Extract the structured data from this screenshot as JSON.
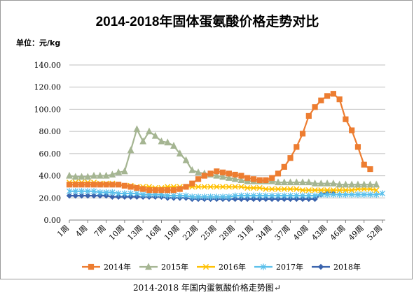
{
  "chart_data": {
    "type": "line",
    "title": "2014-2018年固体蛋氨酸价格走势对比",
    "unit_label": "单位：元/kg",
    "ylim": [
      0,
      140
    ],
    "yticks": [
      "0.00",
      "20.00",
      "40.00",
      "60.00",
      "80.00",
      "100.00",
      "120.00",
      "140.00"
    ],
    "x_count": 52,
    "xticks": [
      "1周",
      "4周",
      "7周",
      "10周",
      "13周",
      "16周",
      "19周",
      "22周",
      "25周",
      "28周",
      "31周",
      "34周",
      "37周",
      "40周",
      "43周",
      "46周",
      "49周",
      "52周"
    ],
    "grid": "horizontal",
    "legend_position": "bottom",
    "series": [
      {
        "name": "2014年",
        "color": "#ed7d31",
        "marker": "square",
        "values": [
          32,
          32,
          32,
          32,
          32,
          32,
          32,
          32,
          32,
          31,
          30,
          29,
          28,
          27,
          27,
          27,
          27,
          27,
          28,
          30,
          33,
          37,
          40,
          42,
          44,
          43,
          42,
          41,
          40,
          38,
          37,
          36,
          36,
          38,
          42,
          48,
          56,
          66,
          78,
          94,
          102,
          108,
          112,
          114,
          109,
          91,
          81,
          66,
          50,
          46
        ]
      },
      {
        "name": "2015年",
        "color": "#a5b592",
        "marker": "triangle",
        "values": [
          40,
          39,
          39,
          39,
          40,
          40,
          40,
          41,
          43,
          44,
          63,
          82,
          71,
          80,
          76,
          71,
          70,
          67,
          60,
          54,
          45,
          43,
          42,
          41,
          40,
          39,
          38,
          37,
          36,
          35,
          35,
          35,
          35,
          35,
          34,
          34,
          34,
          34,
          34,
          34,
          33,
          33,
          33,
          33,
          32,
          32,
          32,
          32,
          32,
          32,
          32
        ]
      },
      {
        "name": "2016年",
        "color": "#ffc000",
        "marker": "x",
        "values": [
          34,
          34,
          34,
          34,
          34,
          33,
          33,
          33,
          32,
          31,
          31,
          30,
          30,
          30,
          29,
          29,
          30,
          30,
          30,
          30,
          30,
          30,
          30,
          30,
          30,
          30,
          30,
          30,
          30,
          29,
          29,
          29,
          28,
          28,
          28,
          28,
          28,
          28,
          27,
          27,
          27,
          27,
          27,
          27,
          27,
          27,
          27,
          28,
          28,
          28,
          27
        ]
      },
      {
        "name": "2017年",
        "color": "#5bc0eb",
        "marker": "star",
        "values": [
          26,
          26,
          26,
          26,
          26,
          25,
          25,
          25,
          24,
          24,
          24,
          24,
          23,
          23,
          23,
          23,
          22,
          22,
          22,
          22,
          21,
          21,
          21,
          21,
          21,
          21,
          21,
          22,
          22,
          22,
          22,
          22,
          22,
          22,
          22,
          22,
          22,
          22,
          22,
          22,
          22,
          23,
          23,
          23,
          23,
          23,
          23,
          23,
          23,
          23,
          23,
          24
        ]
      },
      {
        "name": "2018年",
        "color": "#3a63ad",
        "marker": "diamond",
        "values": [
          22,
          22,
          22,
          22,
          22,
          22,
          22,
          21,
          21,
          21,
          21,
          21,
          21,
          21,
          21,
          21,
          20,
          20,
          20,
          20,
          19,
          19,
          19,
          19,
          19,
          19,
          19,
          19,
          19,
          19,
          19,
          19,
          19,
          19,
          19,
          19,
          19,
          19,
          19,
          19,
          19,
          23,
          25,
          25
        ]
      }
    ]
  },
  "caption": "2014-2018 年国内蛋氨酸价格走势图↵"
}
